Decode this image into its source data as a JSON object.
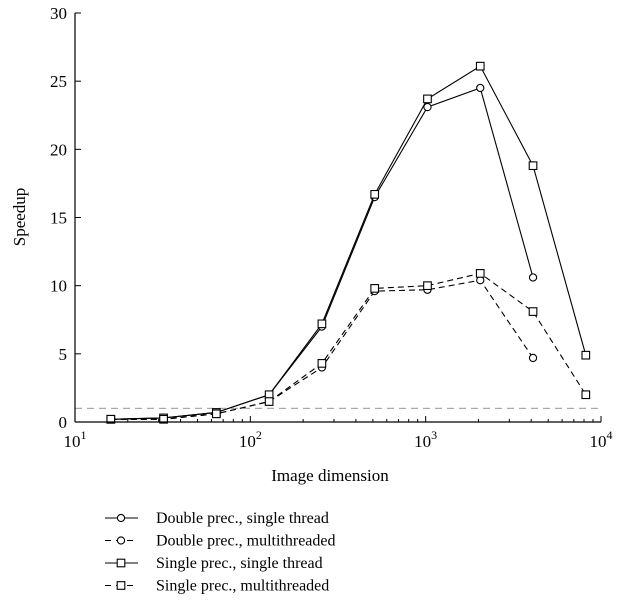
{
  "chart_data": {
    "type": "line",
    "xlabel": "Image dimension",
    "ylabel": "Speedup",
    "xscale": "log",
    "xlim": [
      10,
      10000
    ],
    "ylim": [
      0,
      30
    ],
    "xticks": [
      {
        "base": "10",
        "exp": "1"
      },
      {
        "base": "10",
        "exp": "2"
      },
      {
        "base": "10",
        "exp": "3"
      },
      {
        "base": "10",
        "exp": "4"
      }
    ],
    "yticks": [
      "0",
      "5",
      "10",
      "15",
      "20",
      "25",
      "30"
    ],
    "reference_line": {
      "y": 1,
      "style": "dashed",
      "color": "#aaaaaa"
    },
    "legend_position": "bottom",
    "series": [
      {
        "name": "Double prec., single thread",
        "marker": "circle",
        "line": "solid",
        "x": [
          16,
          32,
          64,
          128,
          256,
          512,
          1024,
          2048,
          4096
        ],
        "y": [
          0.2,
          0.3,
          0.7,
          2.0,
          7.0,
          16.5,
          23.1,
          24.5,
          10.6
        ]
      },
      {
        "name": "Double prec., multithreaded",
        "marker": "circle",
        "line": "dashed",
        "x": [
          16,
          32,
          64,
          128,
          256,
          512,
          1024,
          2048,
          4096
        ],
        "y": [
          0.2,
          0.2,
          0.6,
          1.5,
          4.0,
          9.6,
          9.7,
          10.4,
          4.7
        ]
      },
      {
        "name": "Single prec., single thread",
        "marker": "square",
        "line": "solid",
        "x": [
          16,
          32,
          64,
          128,
          256,
          512,
          1024,
          2048,
          4096,
          8192
        ],
        "y": [
          0.2,
          0.3,
          0.7,
          2.0,
          7.2,
          16.7,
          23.7,
          26.1,
          18.8,
          4.9
        ]
      },
      {
        "name": "Single prec., multithreaded",
        "marker": "square",
        "line": "dashed",
        "x": [
          16,
          32,
          64,
          128,
          256,
          512,
          1024,
          2048,
          4096,
          8192
        ],
        "y": [
          0.2,
          0.2,
          0.6,
          1.5,
          4.3,
          9.8,
          10.0,
          10.9,
          8.1,
          2.0
        ]
      }
    ]
  }
}
